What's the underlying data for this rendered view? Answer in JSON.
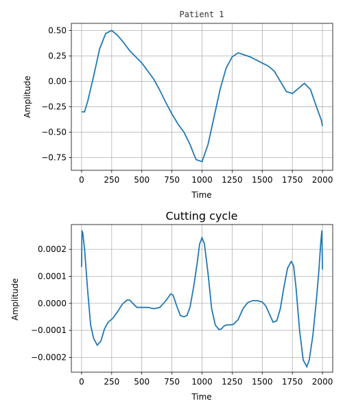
{
  "chart_data": [
    {
      "type": "line",
      "title": "Patient 1",
      "xlabel": "Time",
      "ylabel": "Amplitude",
      "xlim": [
        -85,
        2085
      ],
      "ylim": [
        -0.875,
        0.57
      ],
      "xticks": [
        0,
        250,
        500,
        750,
        1000,
        1250,
        1500,
        1750,
        2000
      ],
      "yticks": [
        -0.75,
        -0.5,
        -0.25,
        0.0,
        0.25,
        0.5
      ],
      "ytick_labels": [
        "−0.75",
        "−0.50",
        "−0.25",
        "0.00",
        "0.25",
        "0.50"
      ],
      "grid": true,
      "color": "#1f77b4",
      "series": [
        {
          "x": [
            0,
            25,
            50,
            100,
            150,
            200,
            250,
            300,
            350,
            400,
            450,
            500,
            550,
            600,
            650,
            700,
            750,
            800,
            850,
            900,
            950,
            1000,
            1050,
            1100,
            1150,
            1200,
            1250,
            1300,
            1350,
            1400,
            1450,
            1500,
            1550,
            1600,
            1650,
            1700,
            1750,
            1800,
            1850,
            1900,
            1950,
            1990,
            2000
          ],
          "y": [
            -0.3,
            -0.3,
            -0.2,
            0.05,
            0.32,
            0.47,
            0.5,
            0.45,
            0.38,
            0.3,
            0.24,
            0.18,
            0.1,
            0.02,
            -0.09,
            -0.21,
            -0.32,
            -0.42,
            -0.5,
            -0.62,
            -0.77,
            -0.79,
            -0.62,
            -0.35,
            -0.08,
            0.13,
            0.24,
            0.28,
            0.26,
            0.24,
            0.21,
            0.18,
            0.15,
            0.1,
            0.0,
            -0.1,
            -0.12,
            -0.07,
            -0.02,
            -0.08,
            -0.25,
            -0.38,
            -0.44
          ]
        }
      ]
    },
    {
      "type": "line",
      "title": "Cutting cycle",
      "xlabel": "Time",
      "ylabel": "Amplitude",
      "xlim": [
        -85,
        2085
      ],
      "ylim": [
        -0.000255,
        0.000292
      ],
      "xticks": [
        0,
        250,
        500,
        750,
        1000,
        1250,
        1500,
        1750,
        2000
      ],
      "yticks": [
        -0.0002,
        -0.0001,
        0.0,
        0.0001,
        0.0002
      ],
      "ytick_labels": [
        "−0.0002",
        "−0.0001",
        "0.0000",
        "0.0001",
        "0.0002"
      ],
      "grid": true,
      "color": "#1f77b4",
      "series": [
        {
          "x": [
            0,
            3,
            10,
            25,
            50,
            75,
            100,
            130,
            160,
            190,
            220,
            260,
            300,
            340,
            380,
            400,
            430,
            460,
            500,
            550,
            600,
            650,
            700,
            740,
            760,
            790,
            820,
            850,
            875,
            900,
            930,
            960,
            980,
            1000,
            1020,
            1050,
            1080,
            1110,
            1140,
            1160,
            1180,
            1200,
            1230,
            1260,
            1300,
            1340,
            1380,
            1420,
            1460,
            1500,
            1530,
            1560,
            1590,
            1620,
            1650,
            1680,
            1710,
            1740,
            1760,
            1780,
            1810,
            1840,
            1870,
            1890,
            1920,
            1950,
            1970,
            1985,
            1995,
            2000
          ],
          "y": [
            0.000135,
            0.00027,
            0.00026,
            0.0002,
            5e-05,
            -8e-05,
            -0.00013,
            -0.000155,
            -0.00014,
            -9.5e-05,
            -7e-05,
            -5.5e-05,
            -3e-05,
            -2e-06,
            1.3e-05,
            1.2e-05,
            -2e-06,
            -1.5e-05,
            -1.5e-05,
            -1.5e-05,
            -2e-05,
            -1.5e-05,
            1e-05,
            3.5e-05,
            3e-05,
            -1e-05,
            -4.5e-05,
            -5e-05,
            -4.5e-05,
            -1.5e-05,
            6e-05,
            0.00015,
            0.00022,
            0.000243,
            0.00022,
            0.00011,
            -2e-05,
            -8e-05,
            -9.7e-05,
            -9.5e-05,
            -8.5e-05,
            -8e-05,
            -8e-05,
            -7.8e-05,
            -6e-05,
            -2e-05,
            3e-06,
            1e-05,
            1e-05,
            5e-06,
            -1e-05,
            -4e-05,
            -7e-05,
            -6.5e-05,
            -2e-05,
            6e-05,
            0.00013,
            0.000155,
            0.00014,
            6e-05,
            -0.0001,
            -0.00021,
            -0.000235,
            -0.00021,
            -0.00012,
            1.5e-05,
            0.00012,
            0.00022,
            0.00027,
            0.000125
          ]
        }
      ]
    }
  ]
}
